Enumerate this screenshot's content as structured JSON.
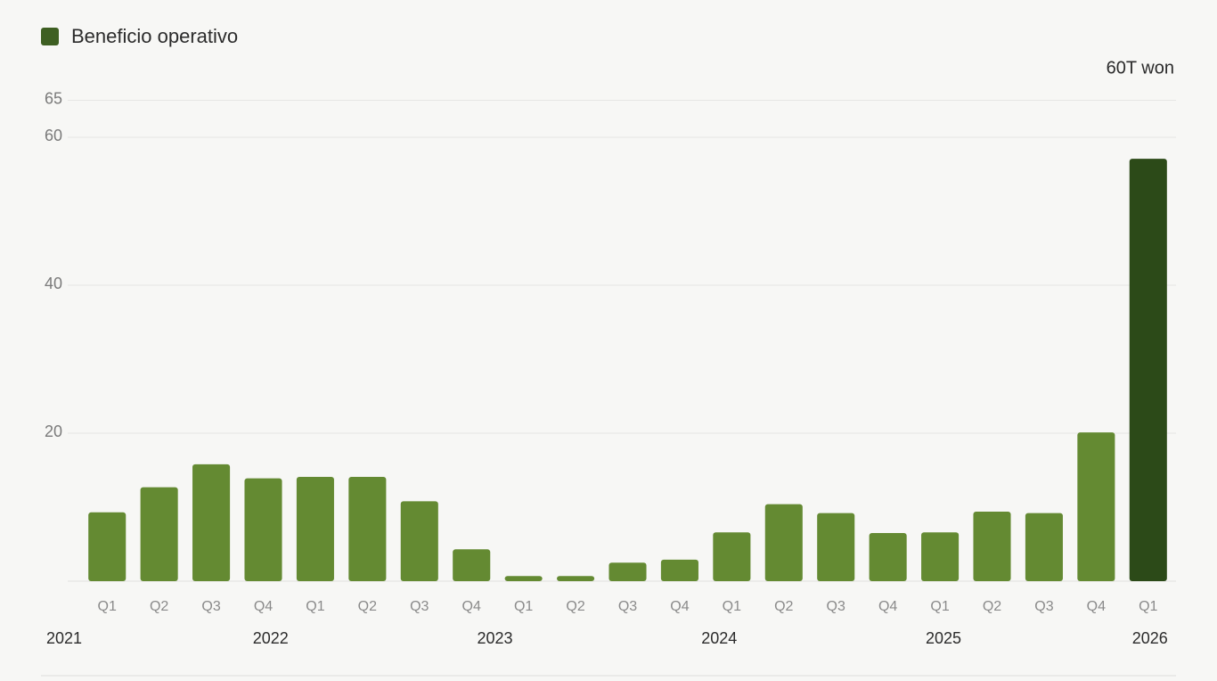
{
  "chart_data": {
    "type": "bar",
    "unit_label": "60T won",
    "categories": [
      "Q1",
      "Q2",
      "Q3",
      "Q4",
      "Q1",
      "Q2",
      "Q3",
      "Q4",
      "Q1",
      "Q2",
      "Q3",
      "Q4",
      "Q1",
      "Q2",
      "Q3",
      "Q4",
      "Q1",
      "Q2",
      "Q3",
      "Q4",
      "Q1"
    ],
    "groups": [
      "2021",
      "2022",
      "2023",
      "2024",
      "2025",
      "2026"
    ],
    "series": [
      {
        "name": "Beneficio operativo",
        "color": "#648a32",
        "values": [
          9.3,
          12.7,
          15.8,
          13.9,
          14.1,
          14.1,
          10.8,
          4.3,
          0.7,
          0.7,
          2.5,
          2.9,
          6.6,
          10.4,
          9.2,
          6.5,
          6.6,
          9.4,
          9.2,
          20.1,
          57.1
        ]
      }
    ],
    "highlight": {
      "index": 20,
      "color": "#2c4a18"
    },
    "legend_color": "#3e5f22",
    "ylim": [
      0,
      65
    ],
    "yticks": [
      20,
      40,
      60,
      65
    ],
    "grid": true
  }
}
